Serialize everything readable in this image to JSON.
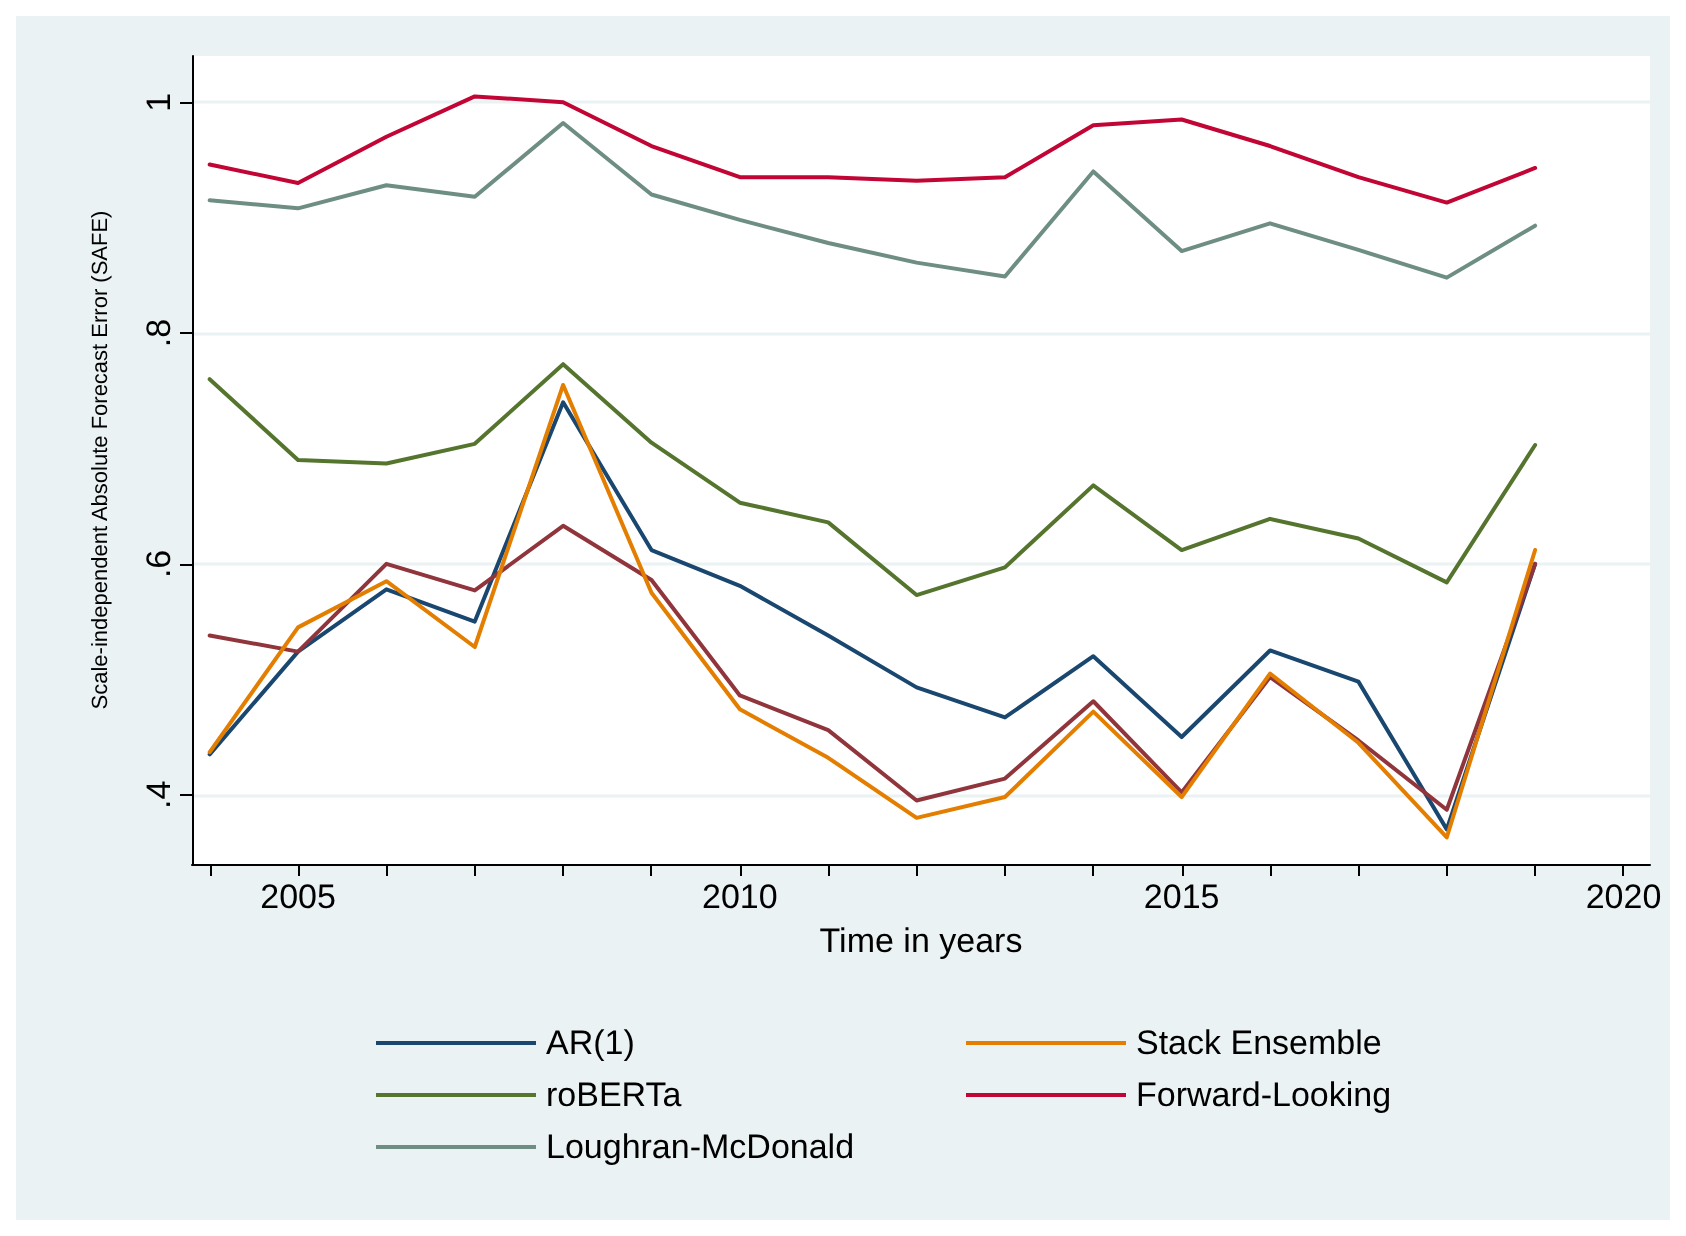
{
  "chart_data": {
    "type": "line",
    "xlabel": "Time in years",
    "ylabel": "Scale-independent Absolute Forecast Error (SAFE)",
    "x": [
      2004,
      2005,
      2006,
      2007,
      2008,
      2009,
      2010,
      2011,
      2012,
      2013,
      2014,
      2015,
      2016,
      2017,
      2018,
      2019
    ],
    "series": [
      {
        "name": "AR(1)",
        "color": "#1a476f",
        "values": [
          0.435,
          0.524,
          0.578,
          0.55,
          0.74,
          0.612,
          0.581,
          0.538,
          0.493,
          0.467,
          0.52,
          0.45,
          0.525,
          0.498,
          0.37,
          0.6
        ]
      },
      {
        "color": "#90353b",
        "values": [
          0.538,
          0.524,
          0.6,
          0.577,
          0.633,
          0.586,
          0.486,
          0.456,
          0.395,
          0.414,
          0.481,
          0.402,
          0.502,
          0.447,
          0.387,
          0.6
        ]
      },
      {
        "name": "roBERTa",
        "color": "#55752f",
        "values": [
          0.76,
          0.69,
          0.687,
          0.704,
          0.773,
          0.705,
          0.653,
          0.636,
          0.573,
          0.597,
          0.668,
          0.612,
          0.639,
          0.622,
          0.584,
          0.703
        ]
      },
      {
        "name": "Stack Ensemble",
        "color": "#e37e00",
        "values": [
          0.437,
          0.545,
          0.585,
          0.528,
          0.755,
          0.575,
          0.474,
          0.432,
          0.38,
          0.398,
          0.472,
          0.398,
          0.505,
          0.445,
          0.363,
          0.612
        ]
      },
      {
        "name": "Loughran-McDonald",
        "color": "#6e8e84",
        "values": [
          0.915,
          0.908,
          0.928,
          0.918,
          0.982,
          0.92,
          0.898,
          0.878,
          0.861,
          0.849,
          0.94,
          0.871,
          0.895,
          0.872,
          0.848,
          0.893
        ]
      },
      {
        "name": "Forward-Looking",
        "color": "#c10534",
        "values": [
          0.946,
          0.93,
          0.97,
          1.005,
          1.0,
          0.962,
          0.935,
          0.935,
          0.932,
          0.935,
          0.98,
          0.985,
          0.962,
          0.935,
          0.913,
          0.943
        ]
      }
    ],
    "xlim": [
      2003.8,
      2020.3
    ],
    "ylim": [
      0.34,
      1.04
    ],
    "xticks": [
      {
        "value": 2004,
        "label": null
      },
      2005,
      {
        "value": 2006,
        "label": null
      },
      {
        "value": 2007,
        "label": null
      },
      {
        "value": 2008,
        "label": null
      },
      {
        "value": 2009,
        "label": null
      },
      2010,
      {
        "value": 2011,
        "label": null
      },
      {
        "value": 2012,
        "label": null
      },
      {
        "value": 2013,
        "label": null
      },
      {
        "value": 2014,
        "label": null
      },
      2015,
      {
        "value": 2016,
        "label": null
      },
      {
        "value": 2017,
        "label": null
      },
      {
        "value": 2018,
        "label": null
      },
      {
        "value": 2019,
        "label": null
      },
      2020
    ],
    "yticks": [
      {
        "value": 0.4,
        "label": ".4"
      },
      {
        "value": 0.6,
        "label": ".6"
      },
      {
        "value": 0.8,
        "label": ".8"
      },
      1
    ],
    "grid": "y",
    "legend": "bottom",
    "marker": "none",
    "line_style": "solid"
  }
}
